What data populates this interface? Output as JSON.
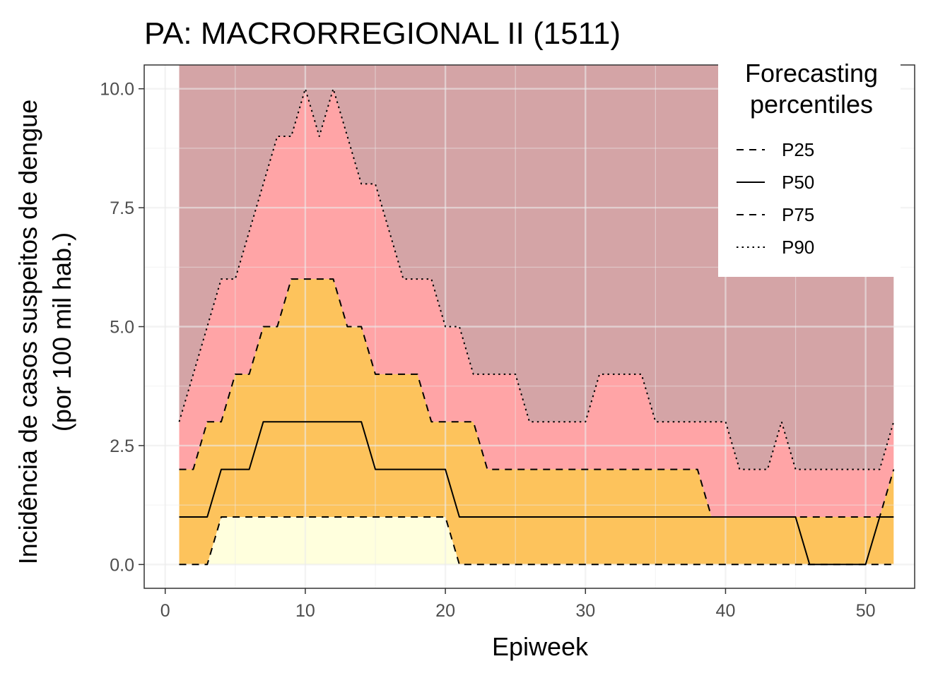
{
  "chart_data": {
    "type": "area",
    "title": "PA: MACRORREGIONAL II (1511)",
    "xlabel": "Epiweek",
    "ylabel_line1": "Incidência de casos suspeitos de dengue",
    "ylabel_line2": "(por 100 mil hab.)",
    "xlim": [
      -1.5,
      53.5
    ],
    "ylim": [
      -0.5,
      10.5
    ],
    "x_ticks": [
      0,
      10,
      20,
      30,
      40,
      50
    ],
    "x_tick_labels": [
      "0",
      "10",
      "20",
      "30",
      "40",
      "50"
    ],
    "y_ticks": [
      0,
      2.5,
      5,
      7.5,
      10
    ],
    "y_tick_labels": [
      "0.0",
      "2.5",
      "5.0",
      "7.5",
      "10.0"
    ],
    "grid": true,
    "legend_position": "top-right",
    "legend_title_line1": "Forecasting",
    "legend_title_line2": "percentiles",
    "legend": [
      "P25",
      "P50",
      "P75",
      "P90"
    ],
    "band_colors": {
      "below_p25": "#ffffdd",
      "p25_p75": "#fdc35c",
      "p75_p90": "#ffa4a6",
      "above_p90": "#d4a4a6"
    },
    "top_value": 10.5,
    "x": [
      1,
      2,
      3,
      4,
      5,
      6,
      7,
      8,
      9,
      10,
      11,
      12,
      13,
      14,
      15,
      16,
      17,
      18,
      19,
      20,
      21,
      22,
      23,
      24,
      25,
      26,
      27,
      28,
      29,
      30,
      31,
      32,
      33,
      34,
      35,
      36,
      37,
      38,
      39,
      40,
      41,
      42,
      43,
      44,
      45,
      46,
      47,
      48,
      49,
      50,
      51,
      52
    ],
    "series": [
      {
        "name": "P25",
        "linestyle": "dashed",
        "values": [
          0,
          0,
          0,
          1,
          1,
          1,
          1,
          1,
          1,
          1,
          1,
          1,
          1,
          1,
          1,
          1,
          1,
          1,
          1,
          1,
          0,
          0,
          0,
          0,
          0,
          0,
          0,
          0,
          0,
          0,
          0,
          0,
          0,
          0,
          0,
          0,
          0,
          0,
          0,
          0,
          0,
          0,
          0,
          0,
          0,
          0,
          0,
          0,
          0,
          0,
          0,
          0
        ]
      },
      {
        "name": "P50",
        "linestyle": "solid",
        "values": [
          1,
          1,
          1,
          2,
          2,
          2,
          3,
          3,
          3,
          3,
          3,
          3,
          3,
          3,
          2,
          2,
          2,
          2,
          2,
          2,
          1,
          1,
          1,
          1,
          1,
          1,
          1,
          1,
          1,
          1,
          1,
          1,
          1,
          1,
          1,
          1,
          1,
          1,
          1,
          1,
          1,
          1,
          1,
          1,
          1,
          0,
          0,
          0,
          0,
          0,
          1,
          1
        ]
      },
      {
        "name": "P75",
        "linestyle": "dashed",
        "values": [
          2,
          2,
          3,
          3,
          4,
          4,
          5,
          5,
          6,
          6,
          6,
          6,
          5,
          5,
          4,
          4,
          4,
          4,
          3,
          3,
          3,
          3,
          2,
          2,
          2,
          2,
          2,
          2,
          2,
          2,
          2,
          2,
          2,
          2,
          2,
          2,
          2,
          2,
          1,
          1,
          1,
          1,
          1,
          1,
          1,
          1,
          1,
          1,
          1,
          1,
          1,
          2
        ]
      },
      {
        "name": "P90",
        "linestyle": "dotted",
        "values": [
          3,
          4,
          5,
          6,
          6,
          7,
          8,
          9,
          9,
          10,
          9,
          10,
          9,
          8,
          8,
          7,
          6,
          6,
          6,
          5,
          5,
          4,
          4,
          4,
          4,
          3,
          3,
          3,
          3,
          3,
          4,
          4,
          4,
          4,
          3,
          3,
          3,
          3,
          3,
          3,
          2,
          2,
          2,
          3,
          2,
          2,
          2,
          2,
          2,
          2,
          2,
          3
        ]
      }
    ]
  }
}
